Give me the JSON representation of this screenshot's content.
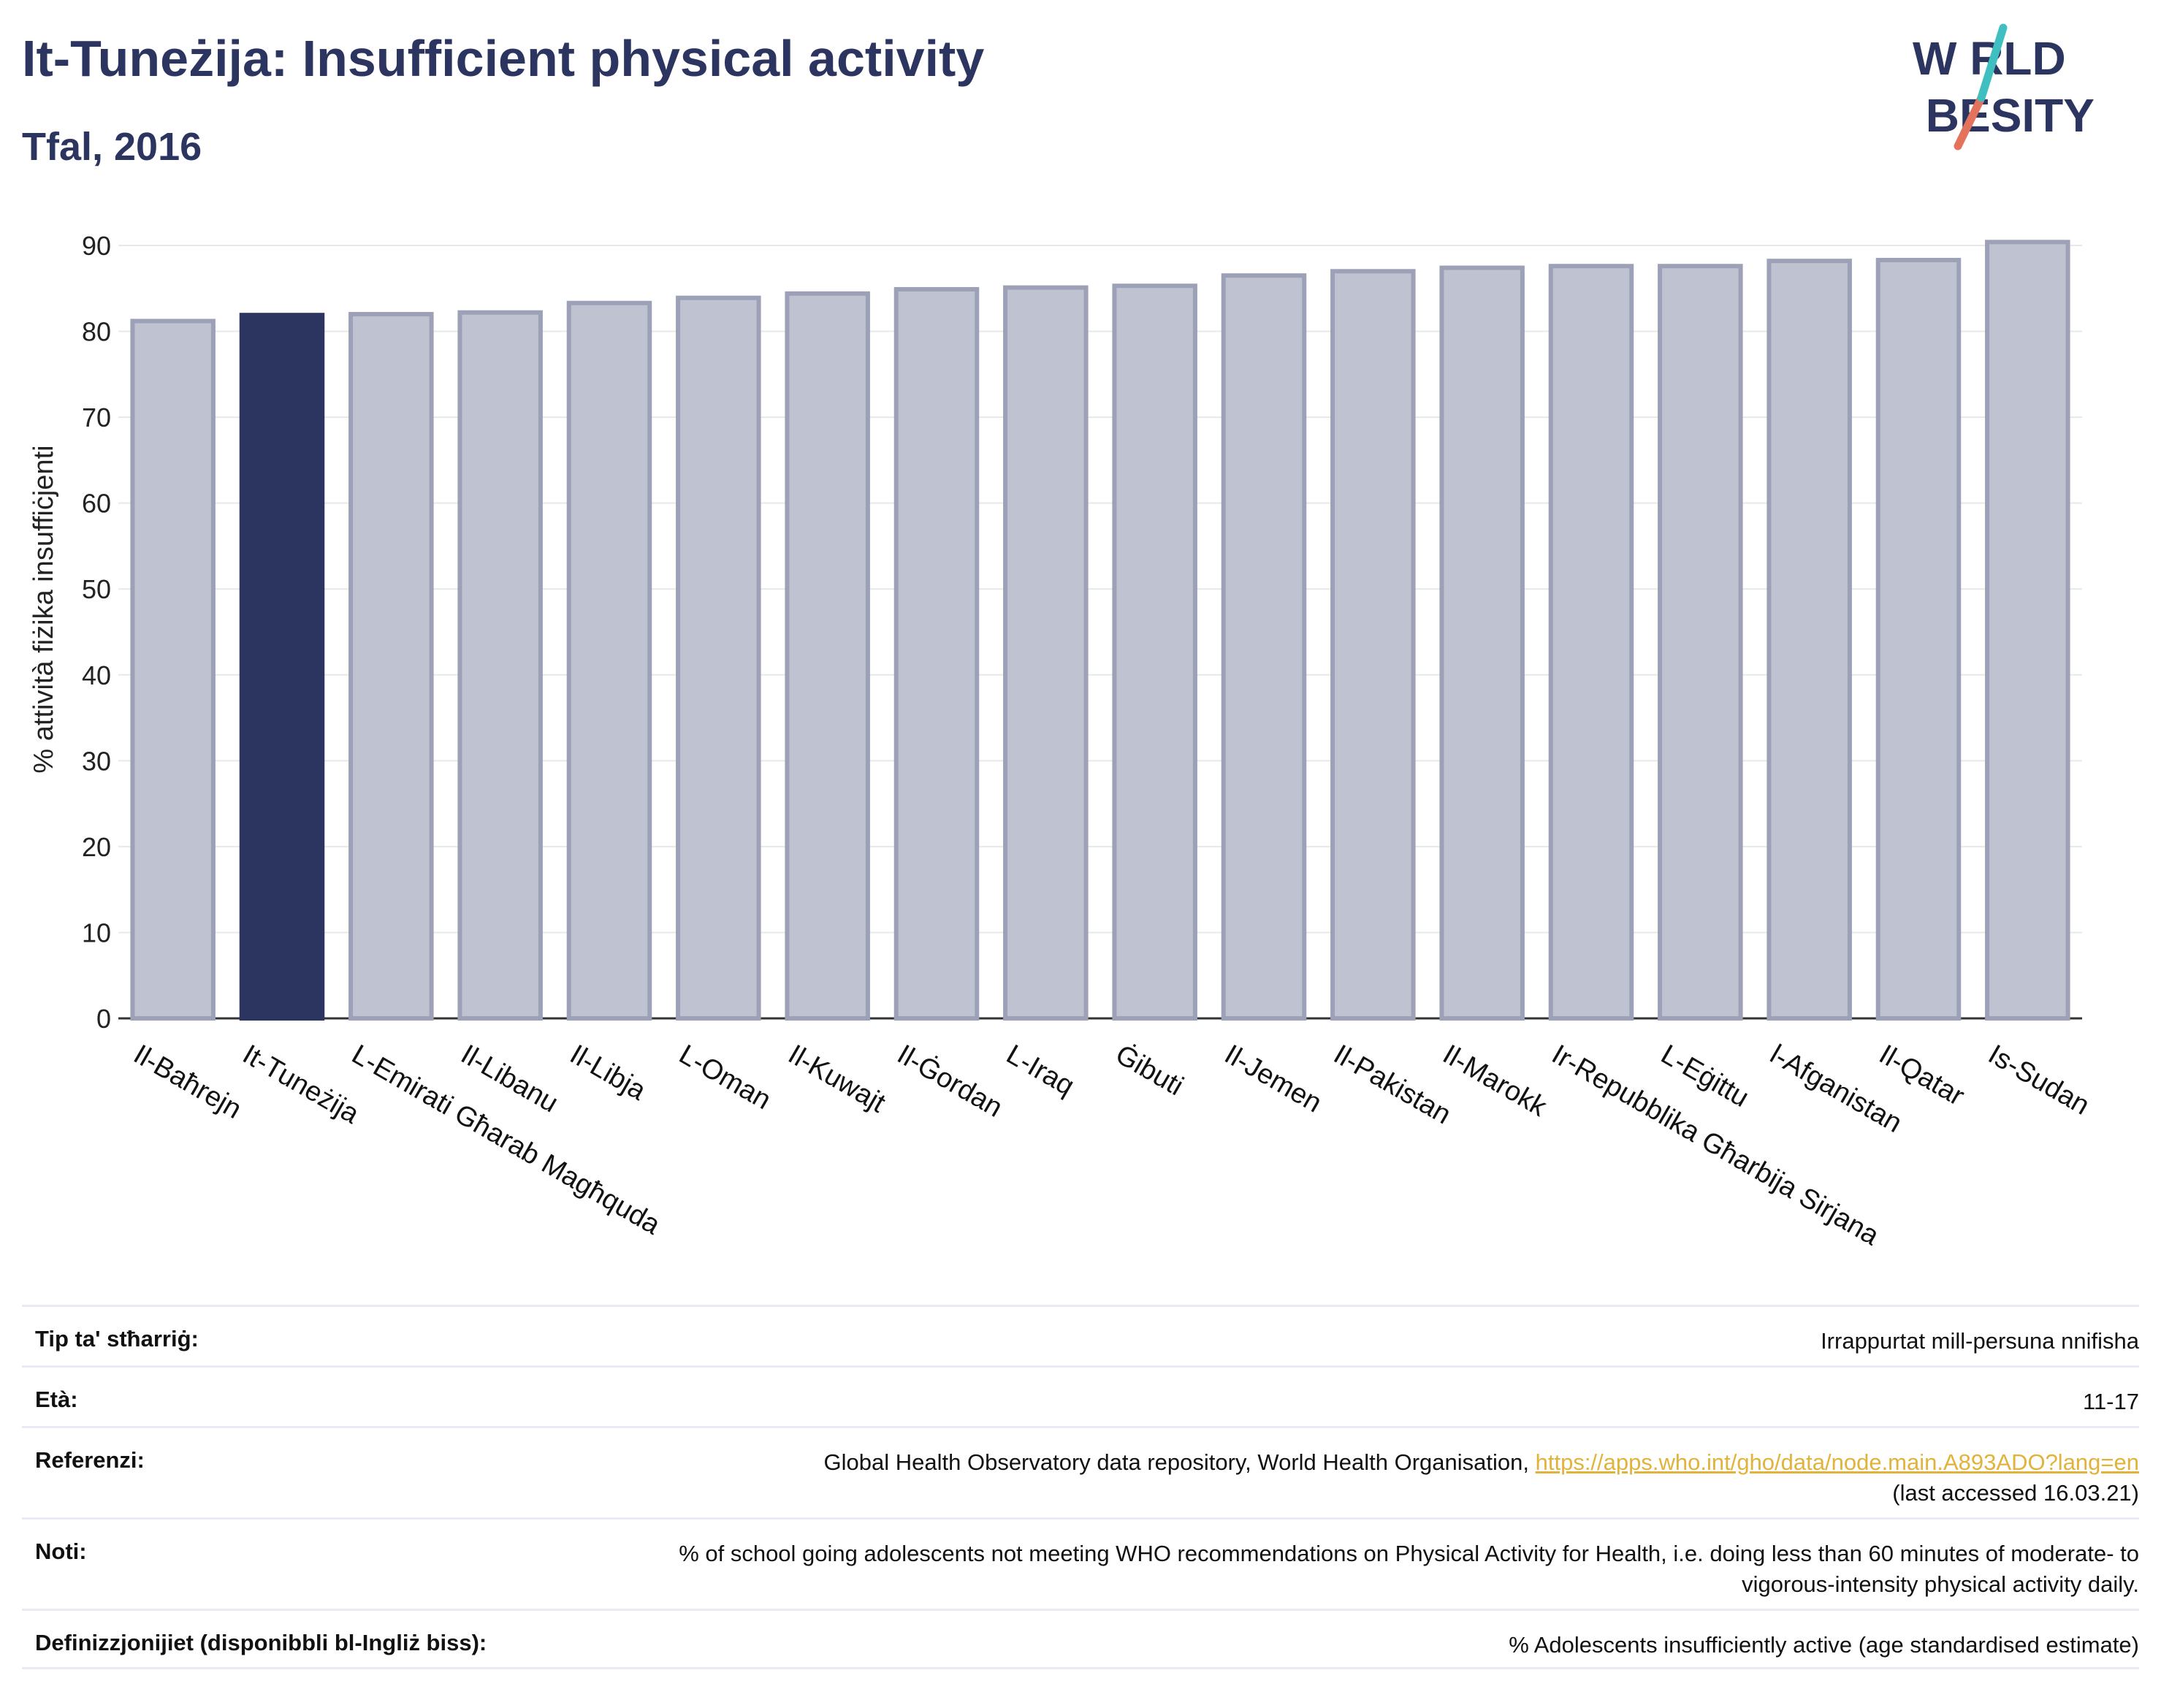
{
  "header": {
    "title": "It-Tuneżija: Insufficient physical activity",
    "subtitle": "Tfal, 2016"
  },
  "logo": {
    "line1": "W RLD",
    "line2": " BESITY"
  },
  "colors": {
    "highlight": "#2b3560",
    "bar": "#bfc2d0",
    "bar_border": "#9da1b7",
    "grid": "#e6e8ee",
    "text": "#2b3560",
    "link": "#e2b33a"
  },
  "chart_data": {
    "type": "bar",
    "ylabel": "% attività fiżika insuffiċjenti",
    "ylim": [
      0,
      90
    ],
    "yticks": [
      0,
      10,
      20,
      30,
      40,
      50,
      60,
      70,
      80,
      90
    ],
    "grid": true,
    "highlight": "It-Tuneżija",
    "categories": [
      "Il-Baħrejn",
      "It-Tuneżija",
      "L-Emirati Għarab Magħquda",
      "Il-Libanu",
      "Il-Libja",
      "L-Oman",
      "Il-Kuwajt",
      "Il-Ġordan",
      "L-Iraq",
      "Ġibuti",
      "Il-Jemen",
      "Il-Pakistan",
      "Il-Marokk",
      "Ir-Repubblika Għarbija Sirjana",
      "L-Eġittu",
      "l-Afganistan",
      "Il-Qatar",
      "Is-Sudan"
    ],
    "values": [
      81.2,
      81.9,
      82.0,
      82.2,
      83.3,
      83.9,
      84.4,
      84.9,
      85.1,
      85.3,
      86.5,
      87.0,
      87.4,
      87.6,
      87.6,
      88.2,
      88.3,
      90.4
    ]
  },
  "info": {
    "rows": [
      {
        "label": "Tip ta' stħarriġ:",
        "value": "Irrappurtat mill-persuna nnifisha"
      },
      {
        "label": "Età:",
        "value": "11-17"
      },
      {
        "label": "Referenzi:",
        "value": "Global Health Observatory data repository, World Health Organisation, ",
        "link": "https://apps.who.int/gho/data/node.main.A893ADO?lang=en",
        "value2": "(last accessed 16.03.21)"
      },
      {
        "label": "Noti:",
        "value": "% of school going adolescents not meeting WHO recommendations on Physical Activity for Health, i.e. doing less than 60 minutes of moderate- to vigorous-intensity physical activity daily."
      },
      {
        "label": "Definizzjonijiet (disponibbli bl-Ingliż biss):",
        "value": "% Adolescents insufficiently active (age standardised estimate)"
      }
    ]
  }
}
